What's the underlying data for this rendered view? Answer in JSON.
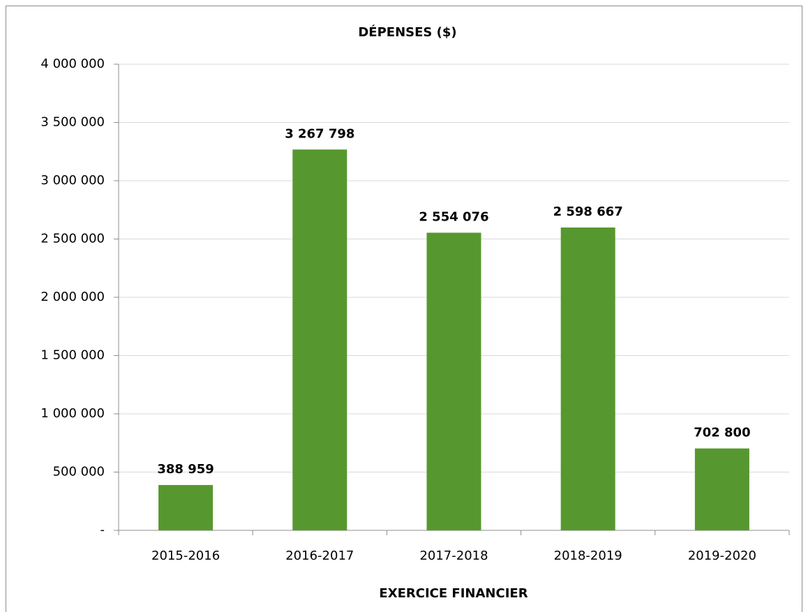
{
  "chart_data": {
    "type": "bar",
    "title": "DÉPENSES ($)",
    "x_label": "EXERCICE FINANCIER",
    "categories": [
      "2015-2016",
      "2016-2017",
      "2017-2018",
      "2018-2019",
      "2019-2020"
    ],
    "values": [
      388959,
      3267798,
      2554076,
      2598667,
      702800
    ],
    "value_labels": [
      "388 959",
      "3 267 798",
      "2 554 076",
      "2 598 667",
      "702 800"
    ],
    "color": "#56982f",
    "ylim": [
      0,
      4000000
    ],
    "yticks": [
      {
        "value": 0,
        "label": "-"
      },
      {
        "value": 500000,
        "label": "500 000"
      },
      {
        "value": 1000000,
        "label": "1 000 000"
      },
      {
        "value": 1500000,
        "label": "1 500 000"
      },
      {
        "value": 2000000,
        "label": "2 000 000"
      },
      {
        "value": 2500000,
        "label": "2 500 000"
      },
      {
        "value": 3000000,
        "label": "3 000 000"
      },
      {
        "value": 3500000,
        "label": "3 500 000"
      },
      {
        "value": 4000000,
        "label": "4 000 000"
      }
    ],
    "grid": true
  }
}
